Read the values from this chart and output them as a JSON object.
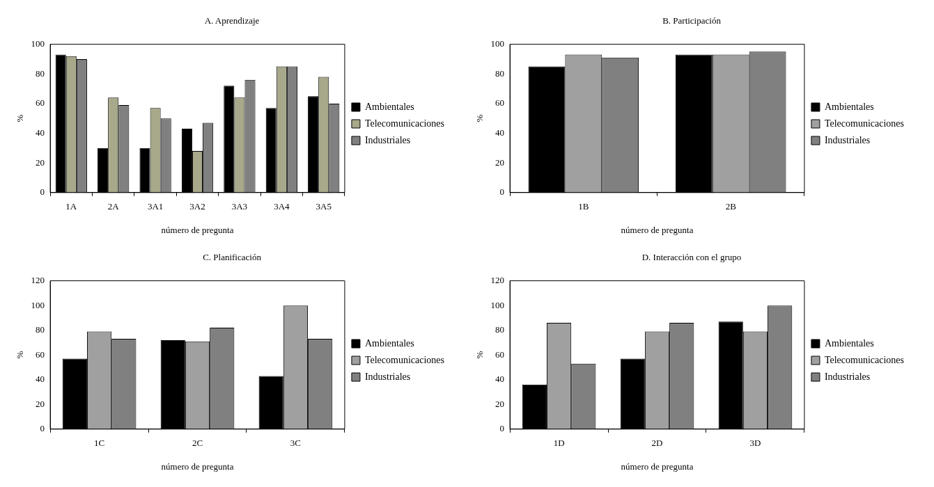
{
  "chart_data": [
    {
      "type": "bar",
      "title": "A. Aprendizaje",
      "xlabel": "número de pregunta",
      "ylabel": "%",
      "categories": [
        "1A",
        "2A",
        "3A1",
        "3A2",
        "3A3",
        "3A4",
        "3A5"
      ],
      "series": [
        {
          "name": "Ambientales",
          "color": "#000000",
          "values": [
            93,
            30,
            30,
            43,
            72,
            57,
            65
          ]
        },
        {
          "name": "Telecomunicaciones",
          "color": "#a8a88a",
          "values": [
            92,
            64,
            57,
            28,
            64,
            85,
            78
          ]
        },
        {
          "name": "Industriales",
          "color": "#808080",
          "values": [
            90,
            59,
            50,
            47,
            76,
            85,
            60
          ]
        }
      ],
      "ylim": [
        0,
        100
      ],
      "yticks": [
        0,
        20,
        40,
        60,
        80,
        100
      ],
      "grid": false,
      "legend": "right"
    },
    {
      "type": "bar",
      "title": "B. Participación",
      "xlabel": "número de pregunta",
      "ylabel": "%",
      "categories": [
        "1B",
        "2B"
      ],
      "series": [
        {
          "name": "Ambientales",
          "color": "#000000",
          "values": [
            85,
            93
          ]
        },
        {
          "name": "Telecomunicaciones",
          "color": "#a0a0a0",
          "values": [
            93,
            93
          ]
        },
        {
          "name": "Industriales",
          "color": "#808080",
          "values": [
            91,
            95
          ]
        }
      ],
      "ylim": [
        0,
        100
      ],
      "yticks": [
        0,
        20,
        40,
        60,
        80,
        100
      ],
      "grid": false,
      "legend": "right"
    },
    {
      "type": "bar",
      "title": "C. Planificación",
      "xlabel": "número de pregunta",
      "ylabel": "%",
      "categories": [
        "1C",
        "2C",
        "3C"
      ],
      "series": [
        {
          "name": "Ambientales",
          "color": "#000000",
          "values": [
            57,
            72,
            43
          ]
        },
        {
          "name": "Telecomunicaciones",
          "color": "#a0a0a0",
          "values": [
            79,
            71,
            100
          ]
        },
        {
          "name": "Industriales",
          "color": "#808080",
          "values": [
            73,
            82,
            73
          ]
        }
      ],
      "ylim": [
        0,
        120
      ],
      "yticks": [
        0,
        20,
        40,
        60,
        80,
        100,
        120
      ],
      "grid": false,
      "legend": "right"
    },
    {
      "type": "bar",
      "title": "D. Interacción con el grupo",
      "xlabel": "número de pregunta",
      "ylabel": "%",
      "categories": [
        "1D",
        "2D",
        "3D"
      ],
      "series": [
        {
          "name": "Ambientales",
          "color": "#000000",
          "values": [
            36,
            57,
            87
          ]
        },
        {
          "name": "Telecomunicaciones",
          "color": "#a0a0a0",
          "values": [
            86,
            79,
            79
          ]
        },
        {
          "name": "Industriales",
          "color": "#808080",
          "values": [
            53,
            86,
            100
          ]
        }
      ],
      "ylim": [
        0,
        120
      ],
      "yticks": [
        0,
        20,
        40,
        60,
        80,
        100,
        120
      ],
      "grid": false,
      "legend": "right"
    }
  ]
}
